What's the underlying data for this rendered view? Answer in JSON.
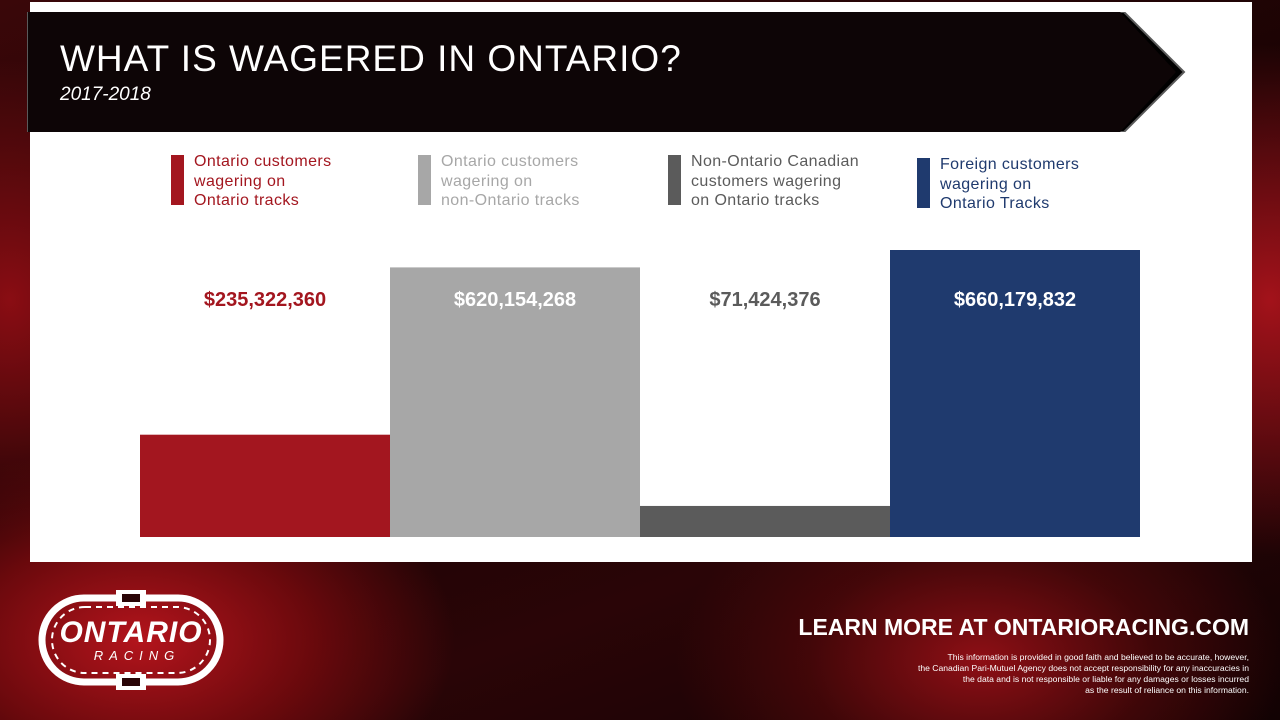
{
  "header": {
    "title": "WHAT IS WAGERED IN ONTARIO?",
    "subtitle": "2017-2018"
  },
  "chart_data": {
    "type": "bar",
    "title": "WHAT IS WAGERED IN ONTARIO?",
    "subtitle": "2017-2018",
    "categories": [
      "Ontario customers wagering on Ontario tracks",
      "Ontario customers wagering on non-Ontario tracks",
      "Non-Ontario Canadian customers wagering on Ontario tracks",
      "Foreign customers wagering on Ontario Tracks"
    ],
    "values": [
      235322360,
      620154268,
      71424376,
      660179832
    ],
    "value_labels": [
      "$235,322,360",
      "$620,154,268",
      "$71,424,376",
      "$660,179,832"
    ],
    "colors": [
      "#a3161f",
      "#a7a7a7",
      "#5b5b5b",
      "#1f3a6e"
    ],
    "label_colors": [
      "#a3161f",
      "#ffffff",
      "#5b5b5b",
      "#ffffff"
    ],
    "xlabel": "",
    "ylabel": "",
    "ylim": [
      0,
      660179832
    ],
    "grid": false,
    "legend_position": "top"
  },
  "legend": {
    "items": [
      {
        "lines": [
          "Ontario customers",
          "wagering on",
          "Ontario tracks"
        ],
        "color": "#a3161f",
        "text_color": "#a3161f"
      },
      {
        "lines": [
          "Ontario customers",
          "wagering on",
          "non-Ontario tracks"
        ],
        "color": "#a7a7a7",
        "text_color": "#a7a7a7"
      },
      {
        "lines": [
          "Non-Ontario Canadian",
          "customers wagering",
          "on Ontario tracks"
        ],
        "color": "#5b5b5b",
        "text_color": "#5b5b5b"
      },
      {
        "lines": [
          "Foreign customers",
          "wagering on",
          "Ontario Tracks"
        ],
        "color": "#1f3a6e",
        "text_color": "#1f3a6e"
      }
    ]
  },
  "footer": {
    "cta": "LEARN MORE AT ONTARIORACING.COM",
    "disclaimer_lines": [
      "This information is provided in good faith and believed to be accurate, however,",
      "the Canadian Pari-Mutuel Agency does not accept responsibility for any inaccuracies in",
      "the data and is not responsible or liable for any damages or losses incurred",
      "as the result of reliance on this information."
    ]
  },
  "logo": {
    "main": "ONTARIO",
    "sub": "RACING"
  }
}
